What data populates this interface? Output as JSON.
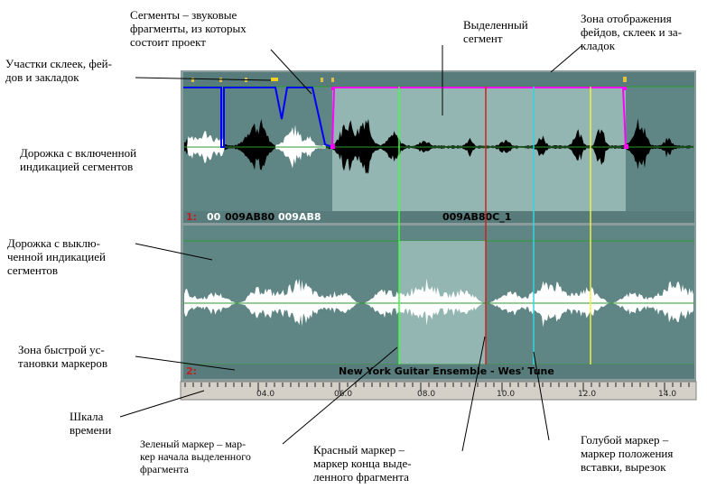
{
  "annotations": {
    "segments": [
      "Сегменты – звуковые",
      "фрагменты, из которых",
      "состоит проект"
    ],
    "selected_segment": [
      "Выделенный",
      "сегмент"
    ],
    "fade_zone": [
      "Зона отображения",
      "фейдов, склеек и за-",
      "кладок"
    ],
    "splice_areas": [
      "Участки склеек, фей-",
      "дов и закладок"
    ],
    "track_on": [
      "Дорожка с включенной",
      "индикацией сегментов"
    ],
    "track_off": [
      "Дорожка с выклю-",
      "ченной индикацией",
      "сегментов"
    ],
    "quick_markers": [
      "Зона быстрой ус-",
      "тановки маркеров"
    ],
    "time_scale": [
      "Шкала",
      "времени"
    ],
    "green_marker": [
      "Зеленый маркер –  мар-",
      "кер начала выделенного",
      "фрагмента"
    ],
    "red_marker": [
      "Красный маркер –",
      "маркер конца выде-",
      "ленного фрагмента"
    ],
    "blue_marker": [
      "Голубой маркер –",
      "маркер положения",
      "вставки, вырезок"
    ]
  },
  "track1": {
    "number": "1:",
    "segment_labels": [
      "00",
      "009AB80",
      "009AB8",
      "009AB80C_1"
    ]
  },
  "track2": {
    "number": "2:",
    "title": "New York Guitar Ensemble - Wes' Tune"
  },
  "timeline": {
    "ticks": [
      "04.0",
      "06.0",
      "08.0",
      "10.0",
      "12.0",
      "14.0"
    ]
  },
  "colors": {
    "track_bg": "#5f8585",
    "selection": "#93b6b2",
    "green_marker": "#3cff3c",
    "red_marker": "#d02020",
    "blue_marker": "#33d6e0",
    "yellow_marker": "#f0f040",
    "segment_line": "#0000ff",
    "selected_segment_line": "#ff00ff"
  }
}
